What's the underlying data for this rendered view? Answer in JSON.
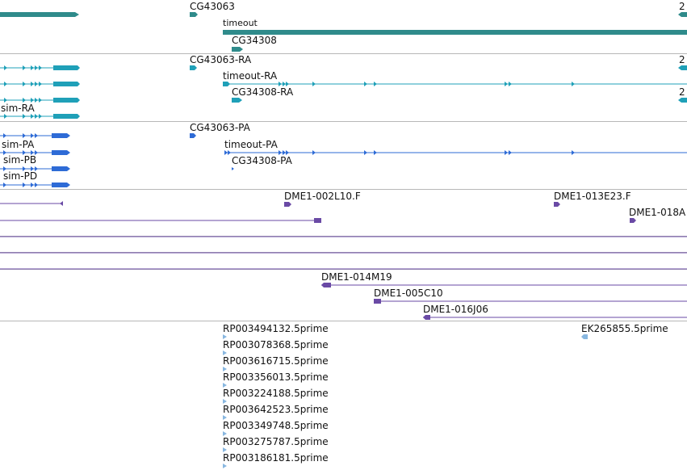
{
  "colors": {
    "gene_summary": "#2f8b8b",
    "transcript": "#1fa0b8",
    "protein": "#2e6bd6",
    "clone": "#6a4aa5",
    "est": "#88b7e0",
    "separator": "#b7b7b7"
  },
  "tracks": {
    "genes": {
      "labels": [
        "CG43063",
        "2",
        "timeout",
        "CG34308"
      ]
    },
    "transcripts": {
      "labels": [
        "CG43063-RA",
        "2",
        "timeout-RA",
        "CG34308-RA",
        "2",
        "sim-RA"
      ]
    },
    "proteins": {
      "labels": [
        "CG43063-PA",
        "timeout-PA",
        "CG34308-PA",
        "sim-PA",
        "sim-PB",
        "sim-PD"
      ]
    },
    "clones_a": {
      "labels": [
        "DME1-002L10.F",
        "DME1-013E23.F",
        "DME1-018A"
      ]
    },
    "clones_b": {
      "labels": [
        "DME1-014M19",
        "DME1-005C10",
        "DME1-016J06"
      ]
    },
    "ests": {
      "labels": [
        "RP003494132.5prime",
        "RP003078368.5prime",
        "RP003616715.5prime",
        "RP003356013.5prime",
        "RP003224188.5prime",
        "RP003642523.5prime",
        "RP003349748.5prime",
        "RP003275787.5prime",
        "RP003186181.5prime",
        "EK265855.5prime"
      ]
    }
  }
}
